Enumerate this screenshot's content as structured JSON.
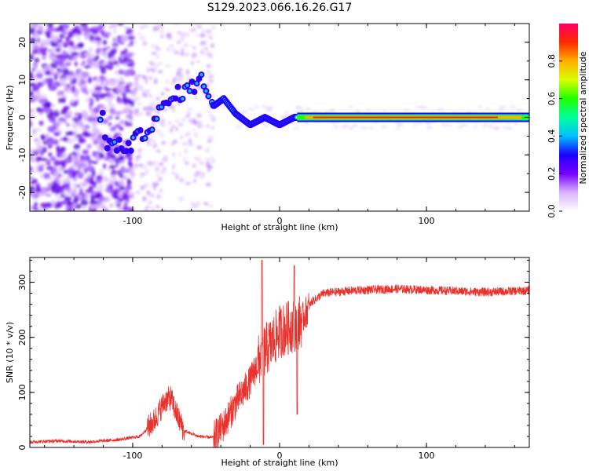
{
  "title": "S129.2023.066.16.26.G17",
  "charts": [
    {
      "type": "heatmap",
      "xlabel": "Height of straight line (km)",
      "ylabel": "Frequency (Hz)",
      "xlim": [
        -170,
        170
      ],
      "ylim": [
        -25,
        25
      ],
      "xticks": [
        -100,
        0,
        100
      ],
      "yticks": [
        -20,
        -10,
        0,
        10,
        20
      ],
      "colorbar": {
        "label": "Normalized spectral amplitude",
        "ticks": [
          "0.0",
          "0.2",
          "0.4",
          "0.6",
          "0.8"
        ],
        "range": [
          0,
          1
        ],
        "colors": [
          "#ffffff",
          "#d9b3ff",
          "#7a00ff",
          "#1a00ff",
          "#00bfff",
          "#00ff9c",
          "#22ff00",
          "#d9ff00",
          "#ffb000",
          "#ff2a00",
          "#ff0066"
        ]
      },
      "ridge": [
        {
          "x": -120,
          "y": -6
        },
        {
          "x": -110,
          "y": -8
        },
        {
          "x": -100,
          "y": -7
        },
        {
          "x": -90,
          "y": -3
        },
        {
          "x": -80,
          "y": 2
        },
        {
          "x": -70,
          "y": 6
        },
        {
          "x": -60,
          "y": 8
        },
        {
          "x": -52,
          "y": 10
        },
        {
          "x": -45,
          "y": 3
        },
        {
          "x": -38,
          "y": 5
        },
        {
          "x": -30,
          "y": 1
        },
        {
          "x": -20,
          "y": -2
        },
        {
          "x": -10,
          "y": 0
        },
        {
          "x": 0,
          "y": -2
        },
        {
          "x": 10,
          "y": 0
        },
        {
          "x": 170,
          "y": 0
        }
      ]
    },
    {
      "type": "line",
      "xlabel": "Height of straight line (km)",
      "ylabel": "SNR (10 * v/v)",
      "xlim": [
        -170,
        170
      ],
      "ylim": [
        0,
        345
      ],
      "xticks": [
        -100,
        0,
        100
      ],
      "yticks": [
        0,
        100,
        200,
        300
      ],
      "color": "#e8322d",
      "series": [
        {
          "x": -170,
          "y": 10
        },
        {
          "x": -150,
          "y": 12
        },
        {
          "x": -130,
          "y": 10
        },
        {
          "x": -110,
          "y": 14
        },
        {
          "x": -95,
          "y": 20
        },
        {
          "x": -85,
          "y": 50
        },
        {
          "x": -78,
          "y": 85
        },
        {
          "x": -74,
          "y": 90
        },
        {
          "x": -70,
          "y": 60
        },
        {
          "x": -65,
          "y": 30
        },
        {
          "x": -55,
          "y": 20
        },
        {
          "x": -45,
          "y": 18
        },
        {
          "x": -38,
          "y": 40
        },
        {
          "x": -30,
          "y": 80
        },
        {
          "x": -20,
          "y": 120
        },
        {
          "x": -12,
          "y": 170
        },
        {
          "x": -5,
          "y": 190
        },
        {
          "x": 0,
          "y": 210
        },
        {
          "x": 8,
          "y": 220
        },
        {
          "x": 15,
          "y": 230
        },
        {
          "x": 22,
          "y": 265
        },
        {
          "x": 30,
          "y": 280
        },
        {
          "x": 50,
          "y": 285
        },
        {
          "x": 80,
          "y": 288
        },
        {
          "x": 110,
          "y": 285
        },
        {
          "x": 140,
          "y": 282
        },
        {
          "x": 170,
          "y": 285
        }
      ]
    }
  ]
}
